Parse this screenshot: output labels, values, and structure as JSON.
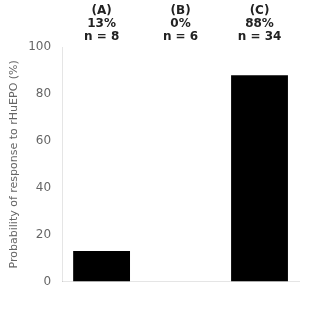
{
  "chart_data": {
    "type": "bar",
    "y_label": "Probability of response to rHuEPO (%)",
    "categories": [
      null,
      null,
      null
    ],
    "values": [
      13,
      0,
      88
    ],
    "color": "#000000",
    "ylim": [
      0,
      100
    ],
    "yticks": [
      0,
      20,
      40,
      60,
      80,
      100
    ],
    "grid": false,
    "annotations": [
      [
        "(A)",
        "13%",
        "n = 8"
      ],
      [
        "(B)",
        "0%",
        "n = 6"
      ],
      [
        "(C)",
        "88%",
        "n = 34"
      ]
    ]
  }
}
